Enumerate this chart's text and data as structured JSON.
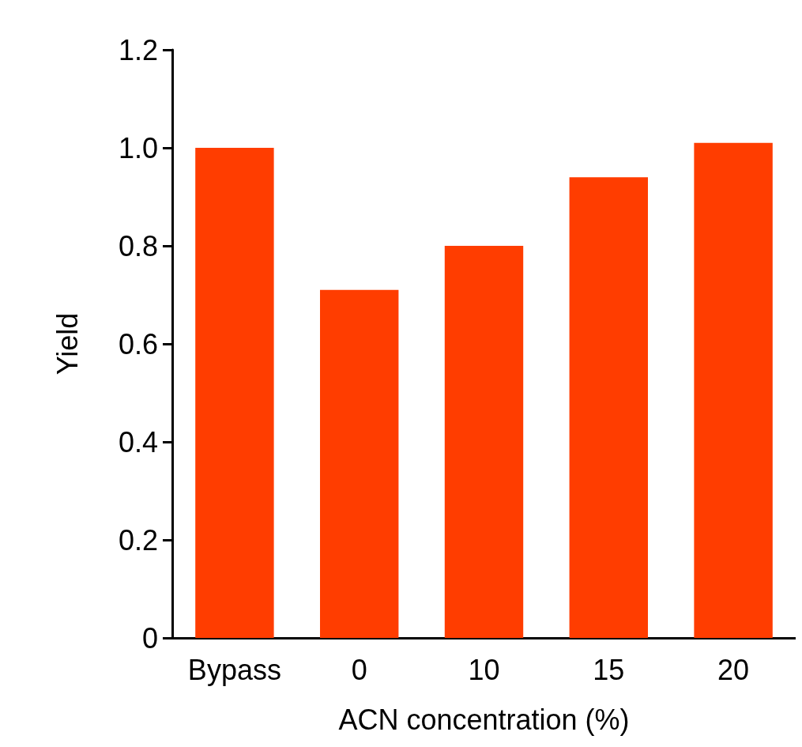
{
  "chart_data": {
    "type": "bar",
    "xlabel": "ACN concentration (%)",
    "ylabel": "Yield",
    "categories": [
      "Bypass",
      "0",
      "10",
      "15",
      "20"
    ],
    "values": [
      1.0,
      0.71,
      0.8,
      0.94,
      1.01
    ],
    "color": "#ff3d00",
    "ylim": [
      0,
      1.2
    ],
    "yticks": [
      0,
      0.2,
      0.4,
      0.6,
      0.8,
      {
        "value": 1,
        "label": "1.0"
      },
      1.2
    ],
    "grid": false
  }
}
